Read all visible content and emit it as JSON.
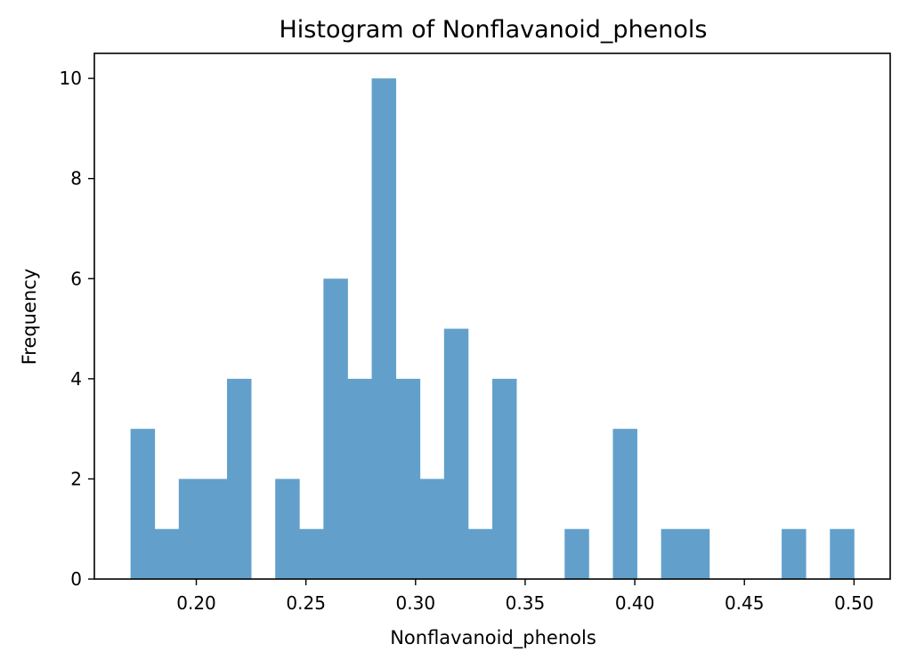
{
  "chart_data": {
    "type": "bar",
    "title": "Histogram of Nonflavanoid_phenols",
    "xlabel": "Nonflavanoid_phenols",
    "ylabel": "Frequency",
    "xlim": [
      0.1535,
      0.5165
    ],
    "ylim": [
      0,
      10.5
    ],
    "x_ticks": [
      "0.20",
      "0.25",
      "0.30",
      "0.35",
      "0.40",
      "0.45",
      "0.50"
    ],
    "x_tick_values": [
      0.2,
      0.25,
      0.3,
      0.35,
      0.4,
      0.45,
      0.5
    ],
    "y_ticks": [
      "0",
      "2",
      "4",
      "6",
      "8",
      "10"
    ],
    "y_tick_values": [
      0,
      2,
      4,
      6,
      8,
      10
    ],
    "bin_start": 0.17,
    "bin_width": 0.011,
    "counts": [
      3,
      1,
      2,
      2,
      4,
      0,
      2,
      1,
      6,
      4,
      10,
      4,
      2,
      5,
      1,
      4,
      0,
      0,
      1,
      0,
      3,
      0,
      1,
      1,
      0,
      0,
      0,
      1,
      0,
      1
    ],
    "bar_color": "#62a0cb",
    "grid": false
  }
}
